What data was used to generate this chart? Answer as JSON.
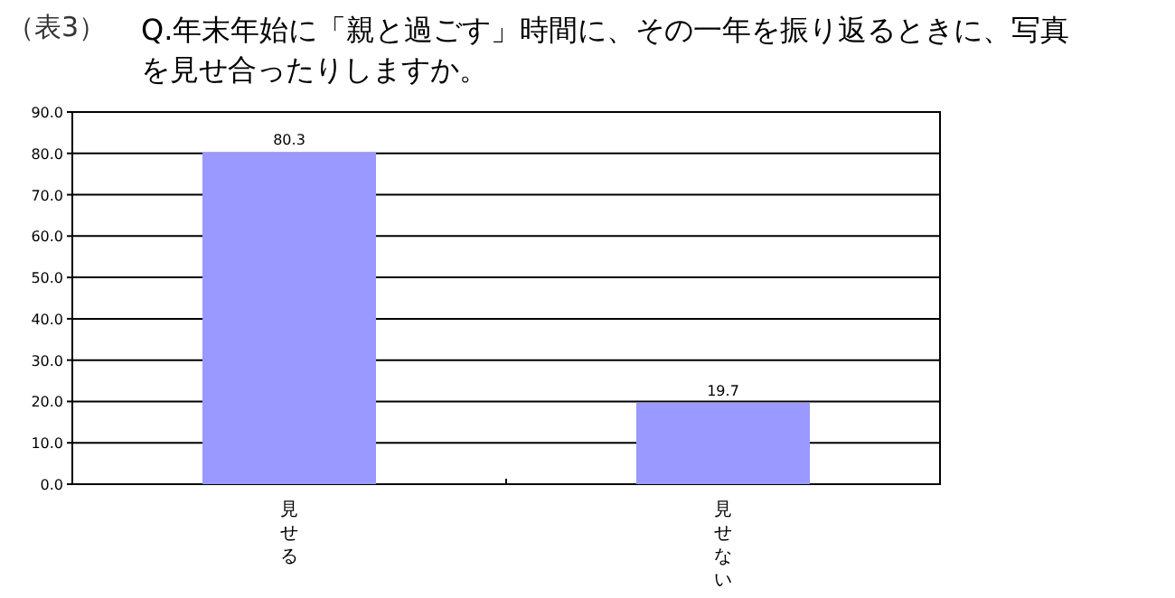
{
  "chart_data": {
    "type": "bar",
    "title": "Q.年末年始に「親と過ごす」時間に、その一年を振り返るときに、写真を見せ合ったりしますか。",
    "annotations": [
      "（表3）"
    ],
    "categories": [
      "見せる",
      "見せない"
    ],
    "values": [
      80.3,
      19.7
    ],
    "color": "#9999ff",
    "data_labels": true,
    "ylim": [
      0,
      90
    ],
    "yticks": [
      {
        "value": 0,
        "label": "0.0"
      },
      {
        "value": 10,
        "label": "10.0"
      },
      {
        "value": 20,
        "label": "20.0"
      },
      {
        "value": 30,
        "label": "30.0"
      },
      {
        "value": 40,
        "label": "40.0"
      },
      {
        "value": 50,
        "label": "50.0"
      },
      {
        "value": 60,
        "label": "60.0"
      },
      {
        "value": 70,
        "label": "70.0"
      },
      {
        "value": 80,
        "label": "80.0"
      },
      {
        "value": 90,
        "label": "90.0"
      }
    ],
    "grid": "y"
  }
}
